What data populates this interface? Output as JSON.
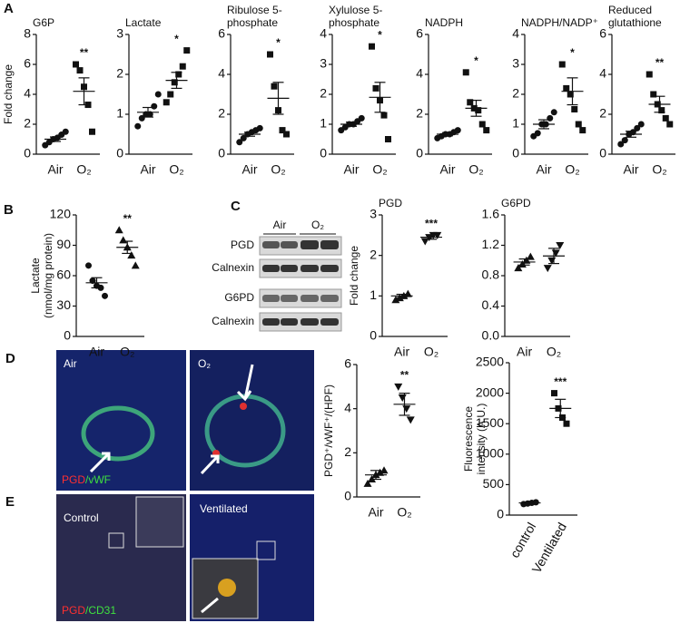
{
  "panel_labels": [
    "A",
    "B",
    "C",
    "D",
    "E"
  ],
  "blot": {
    "groups": [
      "Air",
      "O₂"
    ],
    "rows": [
      "PGD",
      "Calnexin",
      "G6PD",
      "Calnexin"
    ]
  },
  "images": {
    "D": {
      "left": "Air",
      "right": "O₂",
      "stain": [
        "PGD",
        "/vWF"
      ]
    },
    "E": {
      "left": "Control",
      "right": "Ventilated",
      "stain": [
        "PGD",
        "/CD31"
      ]
    }
  },
  "chart_data": [
    {
      "type": "dotplot",
      "title": [
        "G6P"
      ],
      "ylabel": [
        "Fold change"
      ],
      "categories": [
        "Air",
        "O₂"
      ],
      "markers": [
        "circle",
        "square"
      ],
      "points": [
        [
          0.6,
          0.8,
          1.0,
          1.1,
          1.3,
          1.5
        ],
        [
          6.0,
          5.6,
          4.5,
          3.3,
          1.5
        ]
      ],
      "means": [
        1.0,
        4.2
      ],
      "sems": [
        0.15,
        0.9
      ],
      "significance": "**",
      "ylim": [
        0,
        8
      ],
      "yticks": [
        0,
        2,
        4,
        6,
        8
      ]
    },
    {
      "type": "dotplot",
      "title": [
        "Lactate"
      ],
      "categories": [
        "Air",
        "O₂"
      ],
      "markers": [
        "circle",
        "square"
      ],
      "points": [
        [
          0.7,
          0.9,
          1.0,
          1.0,
          1.2,
          1.5
        ],
        [
          1.3,
          1.5,
          1.8,
          2.0,
          2.2,
          2.6
        ]
      ],
      "means": [
        1.05,
        1.85
      ],
      "sems": [
        0.12,
        0.2
      ],
      "significance": "*",
      "ylim": [
        0,
        3
      ],
      "yticks": [
        0,
        1,
        2,
        3
      ]
    },
    {
      "type": "dotplot",
      "title": [
        "Ribulose 5-",
        "phosphate"
      ],
      "categories": [
        "Air",
        "O₂"
      ],
      "markers": [
        "circle",
        "square"
      ],
      "points": [
        [
          0.6,
          0.8,
          1.0,
          1.1,
          1.2,
          1.3
        ],
        [
          5.0,
          3.4,
          2.2,
          1.2,
          1.0
        ]
      ],
      "means": [
        1.0,
        2.8
      ],
      "sems": [
        0.1,
        0.8
      ],
      "significance": "*",
      "ylim": [
        0,
        6
      ],
      "yticks": [
        0,
        2,
        4,
        6
      ]
    },
    {
      "type": "dotplot",
      "title": [
        "Xylulose 5-",
        "phosphate"
      ],
      "categories": [
        "Air",
        "O₂"
      ],
      "markers": [
        "circle",
        "square"
      ],
      "points": [
        [
          0.8,
          0.9,
          1.0,
          1.0,
          1.1,
          1.2
        ],
        [
          3.6,
          2.2,
          1.8,
          1.3,
          0.5
        ]
      ],
      "means": [
        1.0,
        1.9
      ],
      "sems": [
        0.07,
        0.5
      ],
      "significance": "*",
      "ylim": [
        0,
        4
      ],
      "yticks": [
        0,
        1,
        2,
        3,
        4
      ]
    },
    {
      "type": "dotplot",
      "title": [
        "NADPH"
      ],
      "categories": [
        "Air",
        "O₂"
      ],
      "markers": [
        "circle",
        "square"
      ],
      "points": [
        [
          0.8,
          0.9,
          1.0,
          1.0,
          1.1,
          1.2
        ],
        [
          4.1,
          2.6,
          2.3,
          2.2,
          1.5,
          1.2
        ]
      ],
      "means": [
        1.0,
        2.3
      ],
      "sems": [
        0.08,
        0.4
      ],
      "significance": "*",
      "ylim": [
        0,
        6
      ],
      "yticks": [
        0,
        2,
        4,
        6
      ]
    },
    {
      "type": "dotplot",
      "title": [
        "NADPH/NADP⁺"
      ],
      "categories": [
        "Air",
        "O₂"
      ],
      "markers": [
        "circle",
        "square"
      ],
      "points": [
        [
          0.6,
          0.7,
          1.0,
          1.0,
          1.2,
          1.4
        ],
        [
          3.0,
          2.2,
          2.0,
          1.5,
          1.0,
          0.8
        ]
      ],
      "means": [
        1.0,
        2.1
      ],
      "sems": [
        0.15,
        0.45
      ],
      "significance": "*",
      "ylim": [
        0,
        4
      ],
      "yticks": [
        0,
        1,
        2,
        3,
        4
      ]
    },
    {
      "type": "dotplot",
      "title": [
        "Reduced",
        "glutathione"
      ],
      "categories": [
        "Air",
        "O₂"
      ],
      "markers": [
        "circle",
        "square"
      ],
      "points": [
        [
          0.5,
          0.7,
          1.0,
          1.1,
          1.3,
          1.5
        ],
        [
          4.0,
          3.0,
          2.5,
          2.2,
          1.8,
          1.5
        ]
      ],
      "means": [
        1.0,
        2.5
      ],
      "sems": [
        0.15,
        0.4
      ],
      "significance": "**",
      "ylim": [
        0,
        6
      ],
      "yticks": [
        0,
        2,
        4,
        6
      ]
    },
    {
      "type": "dotplot",
      "ylabel": [
        "Lactate",
        "(nmol/mg protein)"
      ],
      "categories": [
        "Air",
        "O₂"
      ],
      "markers": [
        "circle",
        "triangle"
      ],
      "points": [
        [
          70,
          55,
          50,
          48,
          40
        ],
        [
          105,
          95,
          88,
          80,
          70
        ]
      ],
      "means": [
        53,
        88
      ],
      "sems": [
        5,
        6
      ],
      "significance": "**",
      "ylim": [
        0,
        120
      ],
      "yticks": [
        0,
        30,
        60,
        90,
        120
      ]
    },
    {
      "type": "dotplot",
      "title": [
        "PGD"
      ],
      "ylabel": [
        "Fold change"
      ],
      "categories": [
        "Air",
        "O₂"
      ],
      "markers": [
        "triangle",
        "triangle-down"
      ],
      "points": [
        [
          0.9,
          0.95,
          1.0,
          1.05
        ],
        [
          2.35,
          2.45,
          2.5,
          2.5
        ]
      ],
      "means": [
        1.0,
        2.45
      ],
      "sems": [
        0.04,
        0.05
      ],
      "significance": "***",
      "ylim": [
        0,
        3
      ],
      "yticks": [
        0,
        1,
        2,
        3
      ]
    },
    {
      "type": "dotplot",
      "title": [
        "G6PD"
      ],
      "categories": [
        "Air",
        "O₂"
      ],
      "markers": [
        "triangle",
        "triangle-down"
      ],
      "points": [
        [
          0.9,
          0.95,
          1.0,
          1.05
        ],
        [
          0.9,
          1.0,
          1.1,
          1.2
        ]
      ],
      "means": [
        0.98,
        1.06
      ],
      "sems": [
        0.04,
        0.1
      ],
      "ylim": [
        0,
        1.6
      ],
      "yticks": [
        {
          "value": 0,
          "label": "0.0"
        },
        0.4,
        0.8,
        1.2,
        1.6
      ]
    },
    {
      "type": "dotplot",
      "ylabel": [
        "PGD⁺/vWF⁺/(HPF)"
      ],
      "categories": [
        "Air",
        "O₂"
      ],
      "markers": [
        "triangle",
        "triangle-down"
      ],
      "points": [
        [
          0.6,
          0.8,
          1.0,
          1.1,
          1.2
        ],
        [
          5.0,
          4.5,
          4.0,
          3.5
        ]
      ],
      "means": [
        1.0,
        4.2
      ],
      "sems": [
        0.2,
        0.5
      ],
      "significance": "**",
      "ylim": [
        0,
        6
      ],
      "yticks": [
        0,
        2,
        4,
        6
      ]
    },
    {
      "type": "dotplot",
      "ylabel": [
        "Fluorescence",
        "intensity (A.U.)"
      ],
      "categories": [
        "control",
        "Ventilated"
      ],
      "markers": [
        "circle",
        "square"
      ],
      "rotate_categories": true,
      "points": [
        [
          180,
          190,
          200,
          210
        ],
        [
          2000,
          1750,
          1600,
          1500
        ]
      ],
      "means": [
        200,
        1750
      ],
      "sems": [
        10,
        150
      ],
      "significance": "***",
      "ylim": [
        0,
        2500
      ],
      "yticks": [
        0,
        500,
        1000,
        1500,
        2000,
        2500
      ]
    }
  ]
}
